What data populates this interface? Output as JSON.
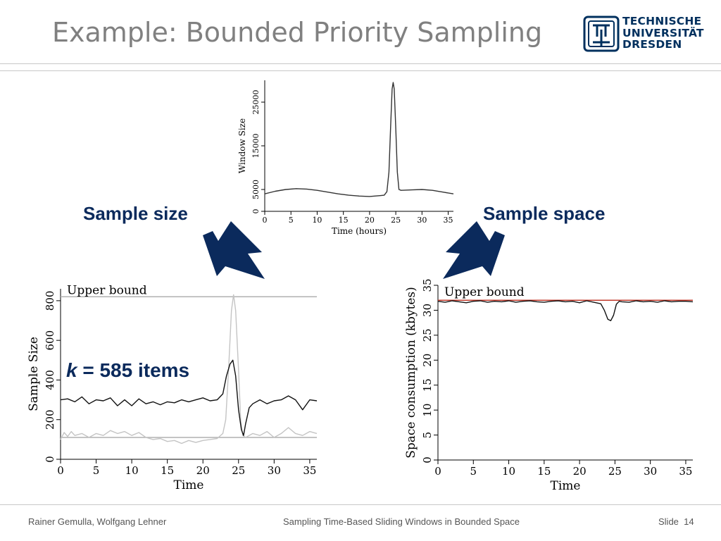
{
  "slide": {
    "title": "Example: Bounded Priority Sampling",
    "logo": {
      "lines": [
        "TECHNISCHE",
        "UNIVERSITÄT",
        "DRESDEN"
      ],
      "color": "#00305e"
    },
    "footer": {
      "authors": "Rainer Gemulla, Wolfgang Lehner",
      "talk_title": "Sampling Time-Based Sliding Windows in Bounded Space",
      "slide_label": "Slide",
      "slide_number": "14"
    },
    "labels": {
      "sample_size": "Sample size",
      "sample_space": "Sample space",
      "k_symbol": "k",
      "k_text": " = 585 items"
    },
    "arrow_color": "#0b2a5c"
  },
  "chart_data": [
    {
      "id": "window-size",
      "type": "line",
      "xlabel": "Time (hours)",
      "ylabel": "Window Size",
      "xlim": [
        0,
        36
      ],
      "ylim": [
        0,
        30000
      ],
      "xticks": [
        0,
        5,
        10,
        15,
        20,
        25,
        30,
        35
      ],
      "yticks": [
        0,
        5000,
        15000,
        25000
      ],
      "series": [
        {
          "color": "#333333",
          "points": [
            [
              0,
              4000
            ],
            [
              2,
              4600
            ],
            [
              4,
              5000
            ],
            [
              6,
              5200
            ],
            [
              8,
              5100
            ],
            [
              10,
              4800
            ],
            [
              12,
              4400
            ],
            [
              14,
              4000
            ],
            [
              16,
              3700
            ],
            [
              18,
              3500
            ],
            [
              20,
              3400
            ],
            [
              21,
              3500
            ],
            [
              22,
              3600
            ],
            [
              22.8,
              3700
            ],
            [
              23.3,
              4500
            ],
            [
              23.7,
              9000
            ],
            [
              24,
              19000
            ],
            [
              24.3,
              28000
            ],
            [
              24.5,
              29500
            ],
            [
              24.7,
              28000
            ],
            [
              25,
              19000
            ],
            [
              25.3,
              9000
            ],
            [
              25.6,
              5000
            ],
            [
              26,
              4800
            ],
            [
              28,
              4900
            ],
            [
              30,
              5000
            ],
            [
              32,
              4800
            ],
            [
              34,
              4400
            ],
            [
              36,
              4000
            ]
          ]
        }
      ]
    },
    {
      "id": "sample-size",
      "type": "line",
      "xlabel": "Time",
      "ylabel": "Sample Size",
      "xlim": [
        0,
        36
      ],
      "ylim": [
        0,
        860
      ],
      "xticks": [
        0,
        5,
        10,
        15,
        20,
        25,
        30,
        35
      ],
      "yticks": [
        0,
        200,
        400,
        600,
        800
      ],
      "annotations": [
        {
          "text": "Upper bound",
          "x": 0.5,
          "y": 820
        }
      ],
      "hlines": [
        {
          "y": 820,
          "color": "#b0b0b0"
        },
        {
          "y": 110,
          "color": "#b0b0b0"
        }
      ],
      "series": [
        {
          "color": "#c4c4c4",
          "points": [
            [
              0,
              100
            ],
            [
              0.5,
              135
            ],
            [
              1,
              115
            ],
            [
              1.5,
              140
            ],
            [
              2,
              120
            ],
            [
              3,
              130
            ],
            [
              4,
              110
            ],
            [
              5,
              130
            ],
            [
              6,
              120
            ],
            [
              7,
              145
            ],
            [
              8,
              130
            ],
            [
              9,
              140
            ],
            [
              10,
              120
            ],
            [
              11,
              135
            ],
            [
              12,
              110
            ],
            [
              13,
              100
            ],
            [
              14,
              105
            ],
            [
              15,
              90
            ],
            [
              16,
              95
            ],
            [
              17,
              80
            ],
            [
              18,
              95
            ],
            [
              19,
              85
            ],
            [
              20,
              95
            ],
            [
              21,
              100
            ],
            [
              22,
              105
            ],
            [
              22.8,
              130
            ],
            [
              23.2,
              200
            ],
            [
              23.6,
              450
            ],
            [
              24,
              750
            ],
            [
              24.3,
              830
            ],
            [
              24.6,
              750
            ],
            [
              25,
              450
            ],
            [
              25.3,
              200
            ],
            [
              25.6,
              120
            ],
            [
              26,
              110
            ],
            [
              27,
              130
            ],
            [
              28,
              120
            ],
            [
              29,
              140
            ],
            [
              30,
              110
            ],
            [
              31,
              130
            ],
            [
              32,
              160
            ],
            [
              33,
              130
            ],
            [
              34,
              120
            ],
            [
              35,
              140
            ],
            [
              36,
              130
            ]
          ]
        },
        {
          "color": "#111111",
          "points": [
            [
              0,
              300
            ],
            [
              1,
              305
            ],
            [
              2,
              290
            ],
            [
              3,
              315
            ],
            [
              4,
              280
            ],
            [
              5,
              300
            ],
            [
              6,
              295
            ],
            [
              7,
              310
            ],
            [
              8,
              270
            ],
            [
              9,
              300
            ],
            [
              10,
              270
            ],
            [
              11,
              305
            ],
            [
              12,
              280
            ],
            [
              13,
              290
            ],
            [
              14,
              275
            ],
            [
              15,
              290
            ],
            [
              16,
              285
            ],
            [
              17,
              300
            ],
            [
              18,
              290
            ],
            [
              19,
              300
            ],
            [
              20,
              310
            ],
            [
              21,
              295
            ],
            [
              22,
              300
            ],
            [
              22.8,
              330
            ],
            [
              23.3,
              420
            ],
            [
              23.8,
              480
            ],
            [
              24.2,
              500
            ],
            [
              24.6,
              420
            ],
            [
              25,
              250
            ],
            [
              25.4,
              150
            ],
            [
              25.7,
              120
            ],
            [
              26,
              180
            ],
            [
              26.5,
              260
            ],
            [
              27,
              280
            ],
            [
              28,
              300
            ],
            [
              29,
              280
            ],
            [
              30,
              295
            ],
            [
              31,
              300
            ],
            [
              32,
              320
            ],
            [
              33,
              300
            ],
            [
              34,
              250
            ],
            [
              35,
              300
            ],
            [
              36,
              295
            ]
          ]
        }
      ]
    },
    {
      "id": "space-consumption",
      "type": "line",
      "xlabel": "Time",
      "ylabel": "Space consumption (kbytes)",
      "xlim": [
        0,
        36
      ],
      "ylim": [
        0,
        35
      ],
      "xticks": [
        0,
        5,
        10,
        15,
        20,
        25,
        30,
        35
      ],
      "yticks": [
        0,
        5,
        10,
        15,
        20,
        25,
        30,
        35
      ],
      "annotations": [
        {
          "text": "Upper bound",
          "x": 0.5,
          "y": 32.3
        }
      ],
      "hlines": [
        {
          "y": 32,
          "color": "#c0392b"
        }
      ],
      "series": [
        {
          "color": "#111111",
          "points": [
            [
              0,
              31.8
            ],
            [
              1,
              31.6
            ],
            [
              2,
              31.9
            ],
            [
              3,
              31.7
            ],
            [
              4,
              31.5
            ],
            [
              5,
              31.8
            ],
            [
              6,
              31.9
            ],
            [
              7,
              31.6
            ],
            [
              8,
              31.8
            ],
            [
              9,
              31.7
            ],
            [
              10,
              31.9
            ],
            [
              11,
              31.6
            ],
            [
              12,
              31.8
            ],
            [
              13,
              31.9
            ],
            [
              14,
              31.7
            ],
            [
              15,
              31.6
            ],
            [
              16,
              31.8
            ],
            [
              17,
              31.9
            ],
            [
              18,
              31.7
            ],
            [
              19,
              31.8
            ],
            [
              20,
              31.5
            ],
            [
              21,
              31.9
            ],
            [
              22,
              31.6
            ],
            [
              23,
              31.3
            ],
            [
              23.5,
              30
            ],
            [
              24,
              28.2
            ],
            [
              24.4,
              27.9
            ],
            [
              24.8,
              29
            ],
            [
              25.2,
              31.2
            ],
            [
              25.6,
              31.8
            ],
            [
              26,
              31.7
            ],
            [
              27,
              31.6
            ],
            [
              28,
              31.9
            ],
            [
              29,
              31.7
            ],
            [
              30,
              31.8
            ],
            [
              31,
              31.6
            ],
            [
              32,
              31.9
            ],
            [
              33,
              31.7
            ],
            [
              34,
              31.8
            ],
            [
              35,
              31.8
            ],
            [
              36,
              31.7
            ]
          ]
        }
      ]
    }
  ]
}
